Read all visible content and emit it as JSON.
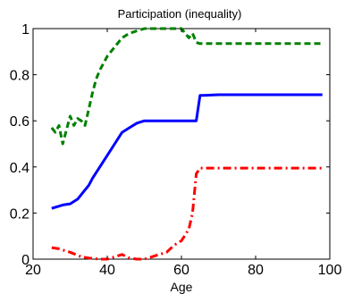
{
  "chart_data": {
    "type": "line",
    "title": "Participation (inequality)",
    "xlabel": "Age",
    "ylabel": "",
    "xlim": [
      20,
      100
    ],
    "ylim": [
      0,
      1
    ],
    "x_ticks": [
      20,
      40,
      60,
      80,
      100
    ],
    "y_ticks": [
      0,
      0.2,
      0.4,
      0.6,
      0.8,
      1
    ],
    "grid": false,
    "legend": "none",
    "series": [
      {
        "color": "#0000ff",
        "style": "solid",
        "x": [
          25,
          26,
          28,
          30,
          32,
          34,
          35,
          36,
          38,
          40,
          42,
          44,
          46,
          48,
          50,
          52,
          55,
          58,
          60,
          62,
          63,
          64,
          65,
          66,
          70,
          75,
          80,
          85,
          90,
          95,
          98
        ],
        "y": [
          0.22,
          0.225,
          0.235,
          0.24,
          0.26,
          0.3,
          0.32,
          0.35,
          0.4,
          0.45,
          0.5,
          0.55,
          0.57,
          0.59,
          0.6,
          0.6,
          0.6,
          0.6,
          0.6,
          0.6,
          0.6,
          0.6,
          0.71,
          0.71,
          0.713,
          0.713,
          0.713,
          0.713,
          0.713,
          0.713,
          0.713
        ]
      },
      {
        "color": "#008000",
        "style": "dashed",
        "x": [
          25,
          26,
          27,
          28,
          29,
          30,
          31,
          32,
          33,
          34,
          35,
          36,
          37,
          38,
          40,
          42,
          44,
          46,
          48,
          50,
          55,
          60,
          62,
          63,
          64,
          65,
          70,
          75,
          80,
          85,
          90,
          95,
          98
        ],
        "y": [
          0.57,
          0.55,
          0.58,
          0.5,
          0.56,
          0.62,
          0.58,
          0.61,
          0.6,
          0.58,
          0.65,
          0.72,
          0.78,
          0.82,
          0.88,
          0.92,
          0.96,
          0.98,
          0.99,
          1.0,
          1.0,
          1.0,
          0.96,
          0.98,
          0.94,
          0.935,
          0.935,
          0.935,
          0.935,
          0.935,
          0.935,
          0.935,
          0.935
        ]
      },
      {
        "color": "#ff0000",
        "style": "dashdot",
        "x": [
          25,
          27,
          30,
          33,
          35,
          38,
          40,
          42,
          44,
          46,
          48,
          50,
          52,
          54,
          56,
          58,
          60,
          62,
          63,
          64,
          65,
          70,
          75,
          80,
          85,
          90,
          95,
          98
        ],
        "y": [
          0.05,
          0.045,
          0.03,
          0.01,
          0.005,
          0.0,
          0.0,
          0.01,
          0.02,
          0.005,
          0.0,
          0.0,
          0.01,
          0.02,
          0.03,
          0.06,
          0.08,
          0.13,
          0.2,
          0.37,
          0.395,
          0.395,
          0.395,
          0.395,
          0.395,
          0.395,
          0.395,
          0.395
        ]
      }
    ]
  }
}
